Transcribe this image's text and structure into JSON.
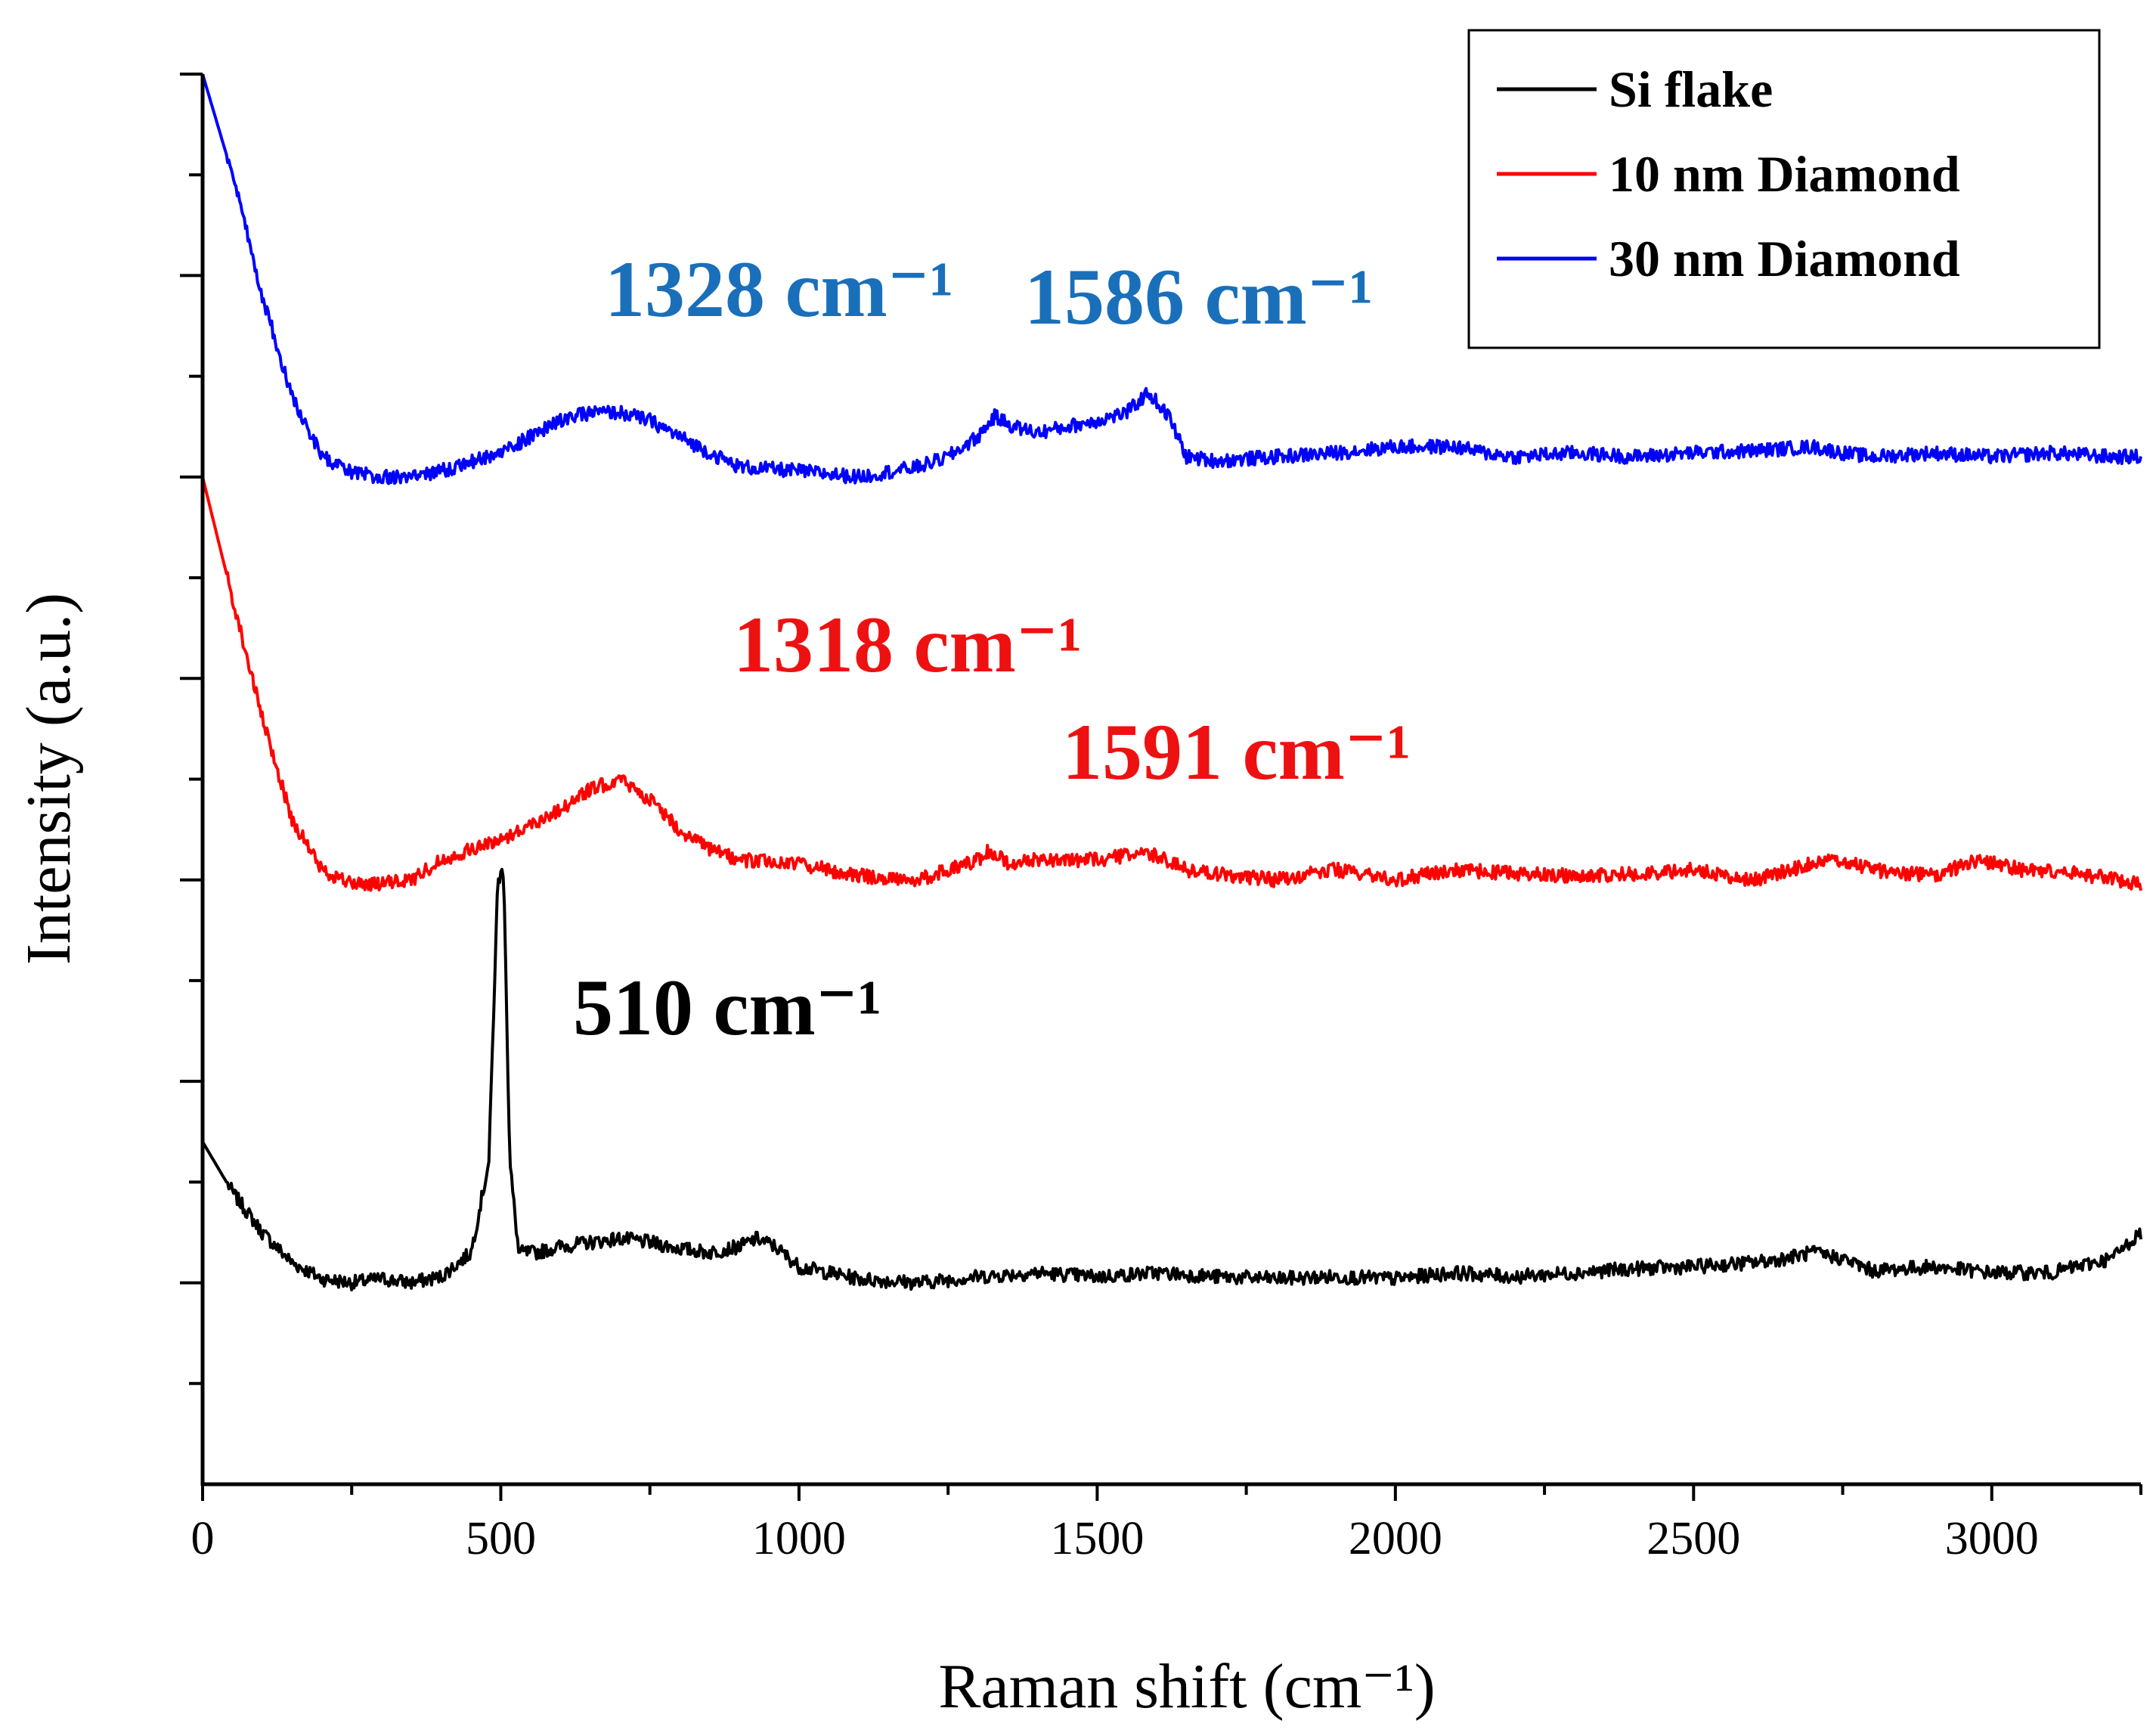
{
  "chart_data": {
    "type": "line",
    "title": "",
    "xlabel": "Raman shift (cm⁻¹)",
    "ylabel": "Intensity (a.u.)",
    "xlim": [
      0,
      3250
    ],
    "ylim": [
      0,
      7
    ],
    "x_ticks": [
      0,
      500,
      1000,
      1500,
      2000,
      2500,
      3000
    ],
    "x_tick_labels": [
      "0",
      "500",
      "1000",
      "1500",
      "2000",
      "2500",
      "3000"
    ],
    "y_ticks": [
      1,
      2,
      3,
      4,
      5,
      6,
      7
    ],
    "legend_position": "top-right",
    "series": [
      {
        "name": "Si flake",
        "color": "#000000",
        "x": [
          0,
          50,
          100,
          150,
          200,
          250,
          300,
          350,
          400,
          450,
          480,
          495,
          505,
          515,
          530,
          560,
          600,
          650,
          700,
          750,
          800,
          850,
          900,
          930,
          960,
          1000,
          1100,
          1200,
          1300,
          1400,
          1500,
          1600,
          1700,
          1800,
          1900,
          2000,
          2100,
          2200,
          2300,
          2400,
          2500,
          2600,
          2650,
          2700,
          2750,
          2800,
          2900,
          3000,
          3100,
          3200,
          3250
        ],
        "y": [
          1.7,
          1.45,
          1.25,
          1.1,
          1.02,
          1.0,
          1.02,
          1.0,
          1.03,
          1.15,
          1.6,
          3.0,
          3.05,
          1.6,
          1.15,
          1.15,
          1.18,
          1.2,
          1.22,
          1.2,
          1.17,
          1.15,
          1.18,
          1.22,
          1.18,
          1.08,
          1.02,
          1.0,
          1.03,
          1.05,
          1.03,
          1.05,
          1.03,
          1.02,
          1.03,
          1.02,
          1.05,
          1.03,
          1.05,
          1.07,
          1.08,
          1.1,
          1.12,
          1.15,
          1.12,
          1.06,
          1.08,
          1.05,
          1.05,
          1.12,
          1.25
        ]
      },
      {
        "name": "10 nm Diamond",
        "color": "#ff0000",
        "x": [
          0,
          50,
          100,
          150,
          200,
          250,
          300,
          350,
          400,
          500,
          600,
          650,
          700,
          750,
          800,
          850,
          900,
          1000,
          1100,
          1200,
          1250,
          1300,
          1320,
          1350,
          1400,
          1500,
          1550,
          1591,
          1650,
          1700,
          1800,
          1900,
          2000,
          2100,
          2200,
          2300,
          2400,
          2500,
          2600,
          2700,
          2750,
          2800,
          2900,
          2980,
          3050,
          3150,
          3250
        ],
        "y": [
          5.0,
          4.4,
          3.8,
          3.3,
          3.05,
          2.98,
          2.98,
          3.0,
          3.1,
          3.2,
          3.35,
          3.45,
          3.5,
          3.4,
          3.25,
          3.15,
          3.1,
          3.08,
          3.02,
          3.0,
          3.05,
          3.1,
          3.15,
          3.08,
          3.1,
          3.1,
          3.12,
          3.13,
          3.05,
          3.03,
          3.0,
          3.05,
          3.0,
          3.05,
          3.03,
          3.02,
          3.03,
          3.05,
          3.0,
          3.08,
          3.1,
          3.05,
          3.02,
          3.1,
          3.05,
          3.03,
          2.98
        ]
      },
      {
        "name": "30 nm Diamond",
        "color": "#0000ff",
        "x": [
          0,
          50,
          100,
          150,
          200,
          250,
          300,
          350,
          400,
          500,
          600,
          650,
          700,
          750,
          800,
          850,
          900,
          1000,
          1100,
          1200,
          1250,
          1300,
          1328,
          1360,
          1400,
          1450,
          1500,
          1550,
          1586,
          1620,
          1650,
          1700,
          1800,
          1900,
          2000,
          2100,
          2150,
          2200,
          2300,
          2400,
          2500,
          2600,
          2700,
          2750,
          2800,
          2900,
          3000,
          3100,
          3200,
          3250
        ],
        "y": [
          7.0,
          6.5,
          5.9,
          5.4,
          5.1,
          5.02,
          5.0,
          5.0,
          5.03,
          5.12,
          5.28,
          5.32,
          5.32,
          5.28,
          5.2,
          5.12,
          5.05,
          5.03,
          5.0,
          5.05,
          5.1,
          5.2,
          5.3,
          5.25,
          5.22,
          5.25,
          5.28,
          5.32,
          5.42,
          5.3,
          5.1,
          5.08,
          5.1,
          5.12,
          5.15,
          5.15,
          5.12,
          5.1,
          5.12,
          5.1,
          5.12,
          5.13,
          5.15,
          5.12,
          5.1,
          5.12,
          5.1,
          5.12,
          5.1,
          5.1
        ]
      }
    ],
    "annotations": [
      {
        "text": "1328 cm⁻¹",
        "color": "#1a6fba"
      },
      {
        "text": "1586 cm⁻¹",
        "color": "#1a6fba"
      },
      {
        "text": "1318 cm⁻¹",
        "color": "#ee1111"
      },
      {
        "text": "1591 cm⁻¹",
        "color": "#ee1111"
      },
      {
        "text": "510 cm⁻¹",
        "color": "#000000"
      }
    ]
  }
}
